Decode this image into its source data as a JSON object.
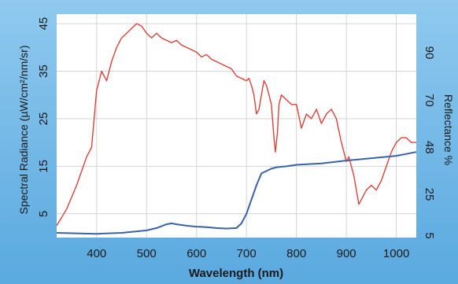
{
  "chart_data": {
    "type": "line",
    "title": "",
    "xlabel": "Wavelength (nm)",
    "ylabel": "Spectral Radiance (µW/cm²/nm/sr)",
    "y2label": "Reflectance %",
    "xlim": [
      320,
      1040
    ],
    "ylim": [
      0,
      47
    ],
    "x_ticks": [
      400,
      500,
      600,
      700,
      800,
      900,
      1000
    ],
    "y_ticks": [
      5,
      15,
      25,
      35,
      45
    ],
    "y2_ticks": [
      "90",
      "70",
      "48",
      "25",
      "5"
    ],
    "y2_tick_positions": [
      38.9,
      28.9,
      19.0,
      9.1,
      0.4
    ],
    "grid": true,
    "legend": "none",
    "series": [
      {
        "color": "#d9423a",
        "x": [
          320,
          340,
          360,
          380,
          390,
          400,
          410,
          420,
          430,
          440,
          450,
          460,
          470,
          480,
          490,
          500,
          510,
          520,
          530,
          540,
          550,
          560,
          570,
          580,
          590,
          600,
          610,
          620,
          630,
          640,
          650,
          660,
          670,
          680,
          690,
          700,
          705,
          710,
          715,
          720,
          725,
          730,
          735,
          740,
          745,
          750,
          755,
          758,
          762,
          765,
          770,
          780,
          790,
          800,
          810,
          820,
          830,
          840,
          850,
          860,
          870,
          880,
          890,
          895,
          900,
          905,
          910,
          915,
          920,
          925,
          930,
          935,
          940,
          950,
          960,
          970,
          980,
          990,
          1000,
          1010,
          1020,
          1030,
          1040
        ],
        "values": [
          2.5,
          6,
          11,
          17,
          19,
          31,
          35,
          33,
          37,
          40,
          42,
          43,
          44,
          45,
          44.5,
          43,
          42,
          43,
          42,
          41.5,
          41,
          41.5,
          40.5,
          40,
          39.5,
          39,
          38,
          38.5,
          37.5,
          37,
          36.5,
          36,
          35.5,
          34,
          33.5,
          33,
          33.5,
          32,
          30,
          26,
          27,
          30,
          33,
          32,
          30,
          28,
          21,
          18,
          22,
          28,
          30,
          29,
          28,
          28,
          23,
          26,
          25,
          27,
          24,
          26,
          27,
          25,
          20,
          18,
          16,
          17,
          15,
          13,
          10,
          7,
          8,
          9,
          10,
          11,
          10,
          12,
          15,
          18,
          20,
          21,
          21,
          20,
          20
        ]
      },
      {
        "color": "#3a62a6",
        "x": [
          320,
          400,
          450,
          500,
          520,
          540,
          550,
          560,
          580,
          600,
          620,
          640,
          660,
          680,
          690,
          700,
          710,
          720,
          730,
          740,
          750,
          760,
          780,
          800,
          850,
          900,
          950,
          1000,
          1020,
          1040
        ],
        "values": [
          1.0,
          0.8,
          1.0,
          1.5,
          2,
          2.8,
          3,
          2.8,
          2.5,
          2.3,
          2.2,
          2,
          1.9,
          2,
          3,
          5,
          8,
          11,
          13.5,
          14,
          14.5,
          14.8,
          15,
          15.3,
          15.6,
          16.2,
          16.7,
          17.2,
          17.6,
          18
        ]
      }
    ]
  }
}
